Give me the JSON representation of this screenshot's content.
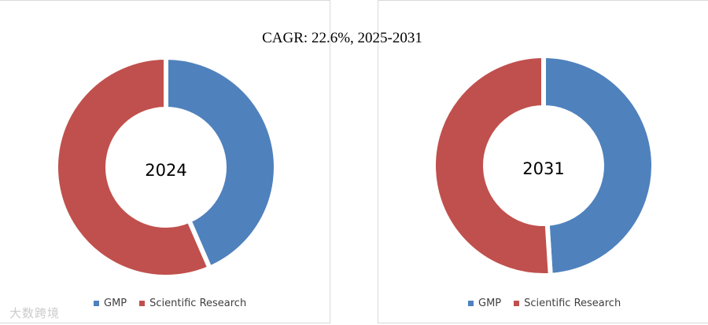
{
  "title": "CAGR: 22.6%, 2025-2031",
  "watermark": "大数跨境",
  "colors": {
    "GMP": "#4f81bd",
    "Scientific Research": "#c0504d"
  },
  "legend": [
    {
      "name": "GMP",
      "color": "#4f81bd"
    },
    {
      "name": "Scientific Research",
      "color": "#c0504d"
    }
  ],
  "chart_data": [
    {
      "type": "pie",
      "center_label": "2024",
      "categories": [
        "GMP",
        "Scientific Research"
      ],
      "values": [
        43.5,
        56.5
      ],
      "legend_position": "bottom"
    },
    {
      "type": "pie",
      "center_label": "2031",
      "categories": [
        "GMP",
        "Scientific Research"
      ],
      "values": [
        49,
        51
      ],
      "legend_position": "bottom"
    }
  ]
}
